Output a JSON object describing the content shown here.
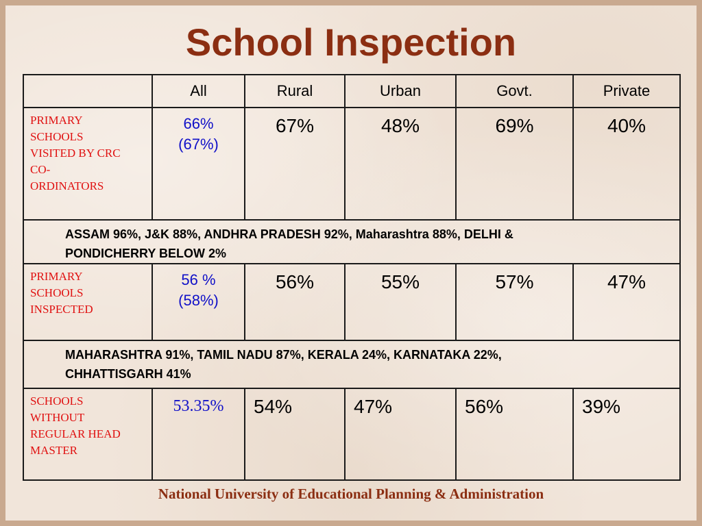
{
  "title": "School Inspection",
  "columns": [
    "",
    "All",
    "Rural",
    "Urban",
    "Govt.",
    "Private"
  ],
  "rows": [
    {
      "label": "PRIMARY SCHOOLS VISITED BY CRC CO-ORDINATORS",
      "label_lines": [
        "PRIMARY",
        "SCHOOLS",
        "VISITED BY CRC",
        "CO-",
        "ORDINATORS"
      ],
      "all_line1": "66%",
      "all_line2": "(67%)",
      "rural": "67%",
      "urban": "48%",
      "govt": "69%",
      "private": "40%"
    },
    {
      "label": "PRIMARY SCHOOLS INSPECTED",
      "label_lines": [
        "PRIMARY",
        "SCHOOLS",
        "INSPECTED"
      ],
      "all_line1": "56 %",
      "all_line2": "(58%)",
      "rural": "56%",
      "urban": "55%",
      "govt": "57%",
      "private": "47%"
    },
    {
      "label": "SCHOOLS WITHOUT REGULAR HEAD MASTER",
      "label_lines": [
        "SCHOOLS",
        "WITHOUT",
        "REGULAR HEAD",
        "MASTER"
      ],
      "all_line1": "53.35%",
      "rural": "54%",
      "urban": "47%",
      "govt": "56%",
      "private": "39%"
    }
  ],
  "notes": [
    {
      "line1": "ASSAM 96%, J&K 88%, ANDHRA PRADESH 92%, Maharashtra 88%, DELHI &",
      "line2": "PONDICHERRY BELOW 2%"
    },
    {
      "line1": "MAHARASHTRA 91%, TAMIL NADU 87%, KERALA 24%, KARNATAKA 22%,",
      "line2": "CHHATTISGARH 41%"
    }
  ],
  "footer": "National University of Educational Planning & Administration",
  "colors": {
    "title": "#8b2e12",
    "row_label": "#e01010",
    "all_value": "#1010c8",
    "background": "#f1e5da"
  }
}
